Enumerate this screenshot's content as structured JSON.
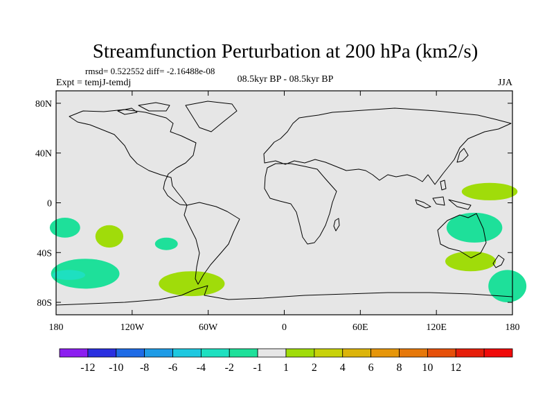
{
  "chart_data": {
    "type": "heatmap",
    "title": "Streamfunction Perturbation at 200 hPa (km2/s)",
    "stats_line": "rmsd= 0.522552 diff= -2.16488e-08",
    "experiment": "Expt = temjJ-temdj",
    "period": "08.5kyr BP - 08.5kyr BP",
    "season": "JJA",
    "xaxis": {
      "range": [
        -180,
        180
      ],
      "ticks": [
        -180,
        -120,
        -60,
        0,
        60,
        120,
        180
      ],
      "tick_labels": [
        "180",
        "120W",
        "60W",
        "0",
        "60E",
        "120E",
        "180"
      ]
    },
    "yaxis": {
      "range": [
        -90,
        90
      ],
      "ticks": [
        80,
        40,
        0,
        -40,
        -80
      ],
      "tick_labels": [
        "80N",
        "40N",
        "0",
        "40S",
        "80S"
      ]
    },
    "colorbar": {
      "colors": [
        "#8c1ef0",
        "#2a2fe0",
        "#1e6be6",
        "#1e9be6",
        "#1ec8e0",
        "#1ee0c0",
        "#1ee09a",
        "#e6e6e6",
        "#a0dc0a",
        "#c8d20a",
        "#dcb40a",
        "#e6960a",
        "#e6780a",
        "#e6500a",
        "#e61e0a",
        "#f00a0a"
      ],
      "labels": [
        "-12",
        "-10",
        "-8",
        "-6",
        "-4",
        "-2",
        "-1",
        "1",
        "2",
        "4",
        "6",
        "8",
        "10",
        "12"
      ]
    },
    "regions": [
      {
        "lon": 162,
        "lat": 9,
        "rlon": 22,
        "rlat": 7,
        "level": 2
      },
      {
        "lon": 150,
        "lat": -20,
        "rlon": 22,
        "rlat": 12,
        "level": -1
      },
      {
        "lon": 147,
        "lat": -47,
        "rlon": 20,
        "rlat": 8,
        "level": 2
      },
      {
        "lon": 176,
        "lat": -67,
        "rlon": 15,
        "rlat": 13,
        "level": -1
      },
      {
        "lon": -173,
        "lat": -20,
        "rlon": 12,
        "rlat": 8,
        "level": -1
      },
      {
        "lon": -138,
        "lat": -27,
        "rlon": 11,
        "rlat": 9,
        "level": 2
      },
      {
        "lon": -93,
        "lat": -33,
        "rlon": 9,
        "rlat": 5,
        "level": -1
      },
      {
        "lon": -157,
        "lat": -57,
        "rlon": 27,
        "rlat": 12,
        "level": -1
      },
      {
        "lon": -170,
        "lat": -58,
        "rlon": 13,
        "rlat": 4,
        "level": -2
      },
      {
        "lon": -73,
        "lat": -65,
        "rlon": 26,
        "rlat": 10,
        "level": 2
      }
    ]
  }
}
